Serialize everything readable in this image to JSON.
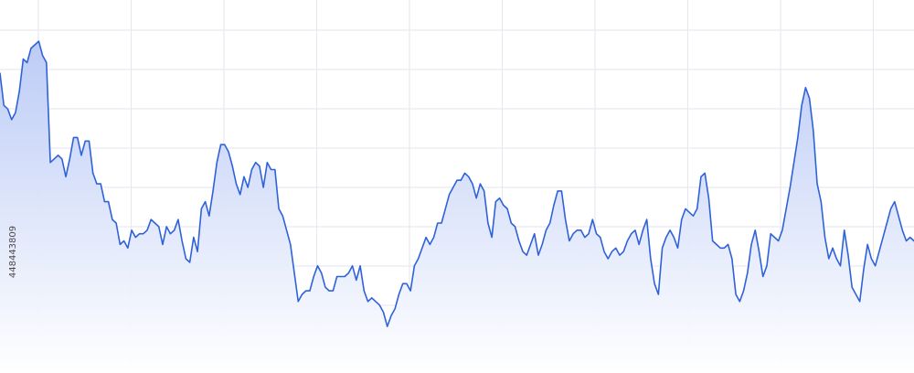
{
  "stock_id": "448443809",
  "colors": {
    "line": "#2f62d9",
    "area_top": "#b9c9f6",
    "area_bottom": "#ffffff",
    "grid": "#e6e6ee"
  },
  "chart_data": {
    "type": "area",
    "title": "",
    "xlabel": "",
    "ylabel": "",
    "grid": true,
    "legend": "none",
    "ylim": [
      0,
      100
    ],
    "y": [
      82,
      73,
      72,
      69,
      71,
      77,
      86,
      85,
      89,
      90,
      91,
      87,
      85,
      57,
      58,
      59,
      58,
      53,
      58,
      64,
      64,
      59,
      63,
      63,
      54,
      51,
      51,
      46,
      46,
      41,
      40,
      34,
      35,
      33,
      38,
      36,
      37,
      37,
      38,
      41,
      40,
      39,
      34,
      39,
      37,
      38,
      41,
      35,
      30,
      29,
      36,
      32,
      44,
      46,
      42,
      49,
      57,
      62,
      62,
      60,
      56,
      51,
      48,
      53,
      50,
      55,
      57,
      56,
      50,
      57,
      55,
      55,
      44,
      42,
      38,
      34,
      26,
      18,
      20,
      21,
      21,
      25,
      28,
      26,
      22,
      21,
      21,
      25,
      25,
      25,
      26,
      28,
      24,
      28,
      21,
      18,
      19,
      18,
      17,
      15,
      11,
      14,
      16,
      20,
      23,
      23,
      21,
      28,
      30,
      33,
      36,
      34,
      36,
      40,
      40,
      44,
      48,
      50,
      52,
      52,
      54,
      53,
      51,
      47,
      51,
      49,
      40,
      36,
      46,
      47,
      45,
      44,
      40,
      39,
      35,
      32,
      31,
      34,
      37,
      31,
      34,
      38,
      40,
      45,
      49,
      49,
      41,
      35,
      37,
      38,
      38,
      36,
      37,
      41,
      37,
      36,
      32,
      30,
      32,
      33,
      31,
      32,
      35,
      37,
      38,
      34,
      38,
      41,
      30,
      23,
      20,
      33,
      36,
      38,
      36,
      33,
      41,
      44,
      43,
      42,
      44,
      53,
      54,
      47,
      35,
      34,
      33,
      33,
      34,
      30,
      20,
      18,
      21,
      26,
      34,
      38,
      32,
      25,
      28,
      37,
      36,
      35,
      38,
      44,
      50,
      57,
      64,
      73,
      78,
      75,
      66,
      51,
      46,
      36,
      30,
      33,
      30,
      28,
      38,
      31,
      22,
      20,
      18,
      27,
      34,
      30,
      28,
      32,
      36,
      40,
      44,
      46,
      42,
      38,
      35,
      36,
      35
    ]
  }
}
